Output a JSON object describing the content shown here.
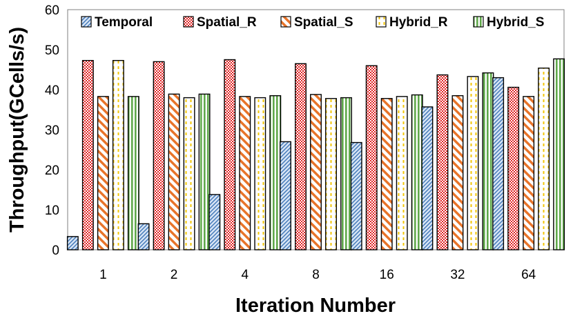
{
  "chart_data": {
    "type": "bar",
    "title": "",
    "xlabel": "Iteration Number",
    "ylabel": "Throughput(GCells/s)",
    "ylim": [
      0,
      60
    ],
    "yticks": [
      "0",
      "10",
      "20",
      "30",
      "40",
      "50",
      "60"
    ],
    "categories": [
      "1",
      "2",
      "4",
      "8",
      "16",
      "32",
      "64"
    ],
    "grid": false,
    "legend_position": "top",
    "series": [
      {
        "name": "Temporal",
        "color": "#4a7ebb",
        "pattern": "diagonal-stripes",
        "values": [
          3.3,
          6.5,
          13.8,
          27.0,
          26.8,
          35.7,
          43.0
        ]
      },
      {
        "name": "Spatial_R",
        "color": "#e02020",
        "pattern": "checkerboard",
        "values": [
          47.3,
          47.0,
          47.5,
          46.5,
          46.0,
          43.7,
          40.6
        ]
      },
      {
        "name": "Spatial_S",
        "color": "#e8742a",
        "pattern": "wide-diagonal",
        "values": [
          38.3,
          38.9,
          38.3,
          38.8,
          37.8,
          38.5,
          38.3
        ]
      },
      {
        "name": "Hybrid_R",
        "color": "#f2c500",
        "pattern": "dashed-vertical",
        "values": [
          47.3,
          38.0,
          38.0,
          37.8,
          38.3,
          43.3,
          45.4
        ]
      },
      {
        "name": "Hybrid_S",
        "color": "#5fa84a",
        "pattern": "vertical-stripes",
        "values": [
          38.3,
          38.9,
          38.5,
          38.0,
          38.7,
          44.2,
          47.7
        ]
      }
    ]
  }
}
